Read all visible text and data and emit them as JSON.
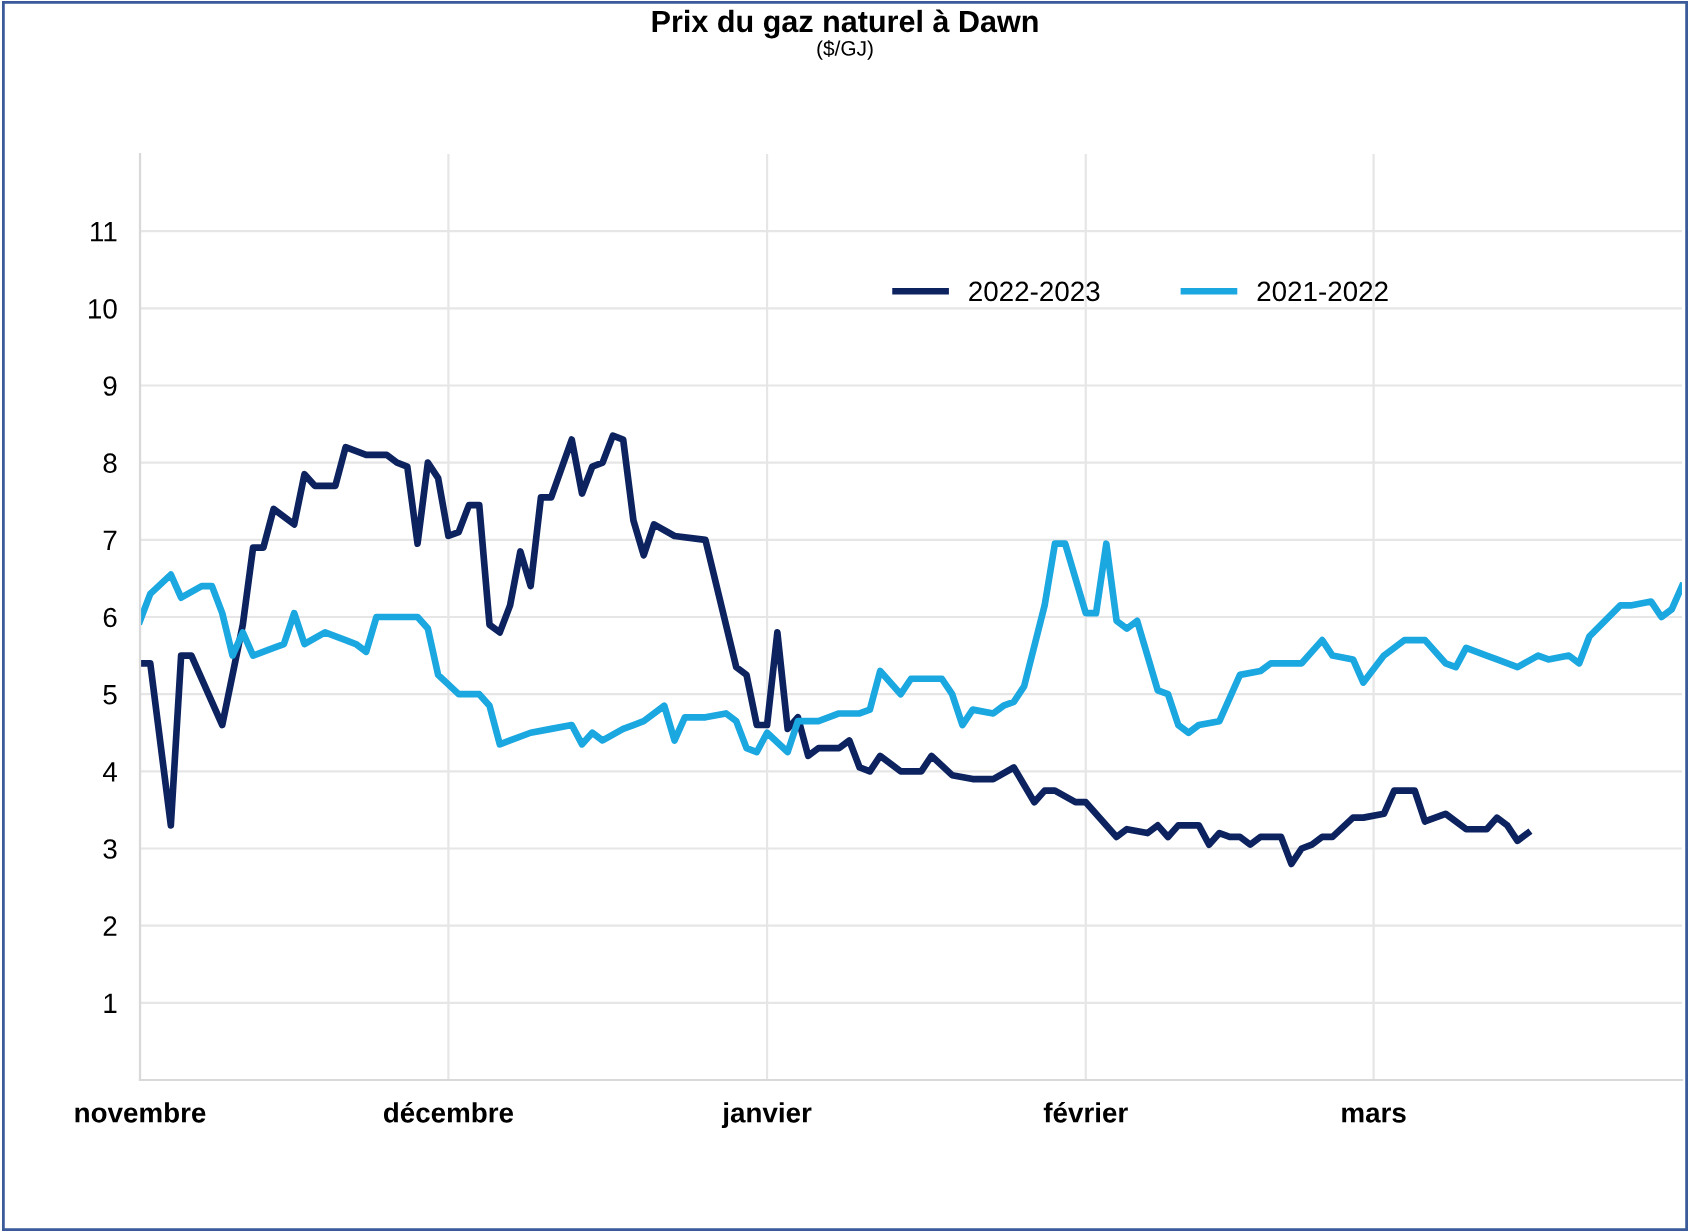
{
  "chart_data": {
    "type": "line",
    "title": "Prix du gaz naturel à Dawn",
    "subtitle": "($/GJ)",
    "xlim": [
      "2022-11-01",
      "2023-03-31"
    ],
    "xticks": [
      {
        "value": "2022-11-01",
        "label": "novembre"
      },
      {
        "value": "2022-12-01",
        "label": "décembre"
      },
      {
        "value": "2023-01-01",
        "label": "janvier"
      },
      {
        "value": "2023-02-01",
        "label": "février"
      },
      {
        "value": "2023-03-01",
        "label": "mars"
      }
    ],
    "ylim": [
      0,
      12
    ],
    "yticks": [
      1,
      2,
      3,
      4,
      5,
      6,
      7,
      8,
      9,
      10,
      11
    ],
    "grid": true,
    "legend": "top",
    "line_style": "solid",
    "marker": "none",
    "series": [
      {
        "name": "2022-2023",
        "color": "#0d2360",
        "x": [
          "2022-11-01",
          "2022-11-02",
          "2022-11-04",
          "2022-11-05",
          "2022-11-06",
          "2022-11-09",
          "2022-11-11",
          "2022-11-12",
          "2022-11-13",
          "2022-11-14",
          "2022-11-16",
          "2022-11-17",
          "2022-11-18",
          "2022-11-20",
          "2022-11-21",
          "2022-11-23",
          "2022-11-25",
          "2022-11-26",
          "2022-11-27",
          "2022-11-28",
          "2022-11-29",
          "2022-11-30",
          "2022-12-01",
          "2022-12-02",
          "2022-12-03",
          "2022-12-04",
          "2022-12-05",
          "2022-12-06",
          "2022-12-07",
          "2022-12-08",
          "2022-12-09",
          "2022-12-10",
          "2022-12-11",
          "2022-12-13",
          "2022-12-14",
          "2022-12-15",
          "2022-12-16",
          "2022-12-17",
          "2022-12-18",
          "2022-12-19",
          "2022-12-20",
          "2022-12-21",
          "2022-12-23",
          "2022-12-26",
          "2022-12-29",
          "2022-12-30",
          "2022-12-31",
          "2023-01-01",
          "2023-01-02",
          "2023-01-03",
          "2023-01-04",
          "2023-01-05",
          "2023-01-06",
          "2023-01-08",
          "2023-01-09",
          "2023-01-10",
          "2023-01-11",
          "2023-01-12",
          "2023-01-14",
          "2023-01-16",
          "2023-01-17",
          "2023-01-19",
          "2023-01-21",
          "2023-01-23",
          "2023-01-25",
          "2023-01-27",
          "2023-01-28",
          "2023-01-29",
          "2023-01-31",
          "2023-02-01",
          "2023-02-04",
          "2023-02-05",
          "2023-02-07",
          "2023-02-08",
          "2023-02-09",
          "2023-02-10",
          "2023-02-12",
          "2023-02-13",
          "2023-02-14",
          "2023-02-15",
          "2023-02-16",
          "2023-02-17",
          "2023-02-18",
          "2023-02-20",
          "2023-02-21",
          "2023-02-22",
          "2023-02-23",
          "2023-02-24",
          "2023-02-25",
          "2023-02-27",
          "2023-02-28",
          "2023-03-02",
          "2023-03-03",
          "2023-03-05",
          "2023-03-06",
          "2023-03-08",
          "2023-03-10",
          "2023-03-12",
          "2023-03-13",
          "2023-03-14",
          "2023-03-15",
          "2023-03-16"
        ],
        "values": [
          5.4,
          5.4,
          3.3,
          5.5,
          5.5,
          4.6,
          5.9,
          6.9,
          6.9,
          7.4,
          7.2,
          7.85,
          7.7,
          7.7,
          8.2,
          8.1,
          8.1,
          8.0,
          7.95,
          6.95,
          8.0,
          7.8,
          7.05,
          7.1,
          7.45,
          7.45,
          5.9,
          5.8,
          6.15,
          6.85,
          6.4,
          7.55,
          7.55,
          8.3,
          7.6,
          7.95,
          8.0,
          8.35,
          8.3,
          7.25,
          6.8,
          7.2,
          7.05,
          7.0,
          5.35,
          5.25,
          4.6,
          4.6,
          5.8,
          4.55,
          4.7,
          4.2,
          4.3,
          4.3,
          4.4,
          4.05,
          4.0,
          4.2,
          4.0,
          4.0,
          4.2,
          3.95,
          3.9,
          3.9,
          4.05,
          3.6,
          3.75,
          3.75,
          3.6,
          3.6,
          3.15,
          3.25,
          3.2,
          3.3,
          3.15,
          3.3,
          3.3,
          3.05,
          3.2,
          3.15,
          3.15,
          3.05,
          3.15,
          3.15,
          2.8,
          3.0,
          3.05,
          3.15,
          3.15,
          3.4,
          3.4,
          3.45,
          3.75,
          3.75,
          3.35,
          3.45,
          3.25,
          3.25,
          3.4,
          3.3,
          3.1,
          3.2
        ]
      },
      {
        "name": "2021-2022",
        "color": "#1ba7e0",
        "x": [
          "2022-11-01",
          "2022-11-02",
          "2022-11-04",
          "2022-11-05",
          "2022-11-07",
          "2022-11-08",
          "2022-11-09",
          "2022-11-10",
          "2022-11-11",
          "2022-11-12",
          "2022-11-14",
          "2022-11-15",
          "2022-11-16",
          "2022-11-17",
          "2022-11-19",
          "2022-11-21",
          "2022-11-22",
          "2022-11-23",
          "2022-11-24",
          "2022-11-28",
          "2022-11-29",
          "2022-11-30",
          "2022-12-02",
          "2022-12-04",
          "2022-12-05",
          "2022-12-06",
          "2022-12-07",
          "2022-12-09",
          "2022-12-11",
          "2022-12-13",
          "2022-12-14",
          "2022-12-15",
          "2022-12-16",
          "2022-12-18",
          "2022-12-19",
          "2022-12-20",
          "2022-12-22",
          "2022-12-23",
          "2022-12-24",
          "2022-12-26",
          "2022-12-28",
          "2022-12-29",
          "2022-12-30",
          "2022-12-31",
          "2023-01-01",
          "2023-01-03",
          "2023-01-04",
          "2023-01-06",
          "2023-01-08",
          "2023-01-10",
          "2023-01-11",
          "2023-01-12",
          "2023-01-14",
          "2023-01-15",
          "2023-01-18",
          "2023-01-19",
          "2023-01-20",
          "2023-01-21",
          "2023-01-23",
          "2023-01-24",
          "2023-01-25",
          "2023-01-26",
          "2023-01-28",
          "2023-01-29",
          "2023-01-30",
          "2023-02-01",
          "2023-02-02",
          "2023-02-03",
          "2023-02-04",
          "2023-02-05",
          "2023-02-06",
          "2023-02-08",
          "2023-02-09",
          "2023-02-10",
          "2023-02-11",
          "2023-02-12",
          "2023-02-14",
          "2023-02-16",
          "2023-02-18",
          "2023-02-19",
          "2023-02-21",
          "2023-02-22",
          "2023-02-24",
          "2023-02-25",
          "2023-02-27",
          "2023-02-28",
          "2023-03-02",
          "2023-03-04",
          "2023-03-06",
          "2023-03-08",
          "2023-03-09",
          "2023-03-10",
          "2023-03-12",
          "2023-03-13",
          "2023-03-15",
          "2023-03-17",
          "2023-03-18",
          "2023-03-20",
          "2023-03-21",
          "2023-03-22",
          "2023-03-25",
          "2023-03-26",
          "2023-03-28",
          "2023-03-29",
          "2023-03-30",
          "2023-03-31"
        ],
        "values": [
          5.95,
          6.3,
          6.55,
          6.25,
          6.4,
          6.4,
          6.05,
          5.5,
          5.8,
          5.5,
          5.6,
          5.65,
          6.05,
          5.65,
          5.8,
          5.7,
          5.65,
          5.55,
          6.0,
          6.0,
          5.85,
          5.25,
          5.0,
          5.0,
          4.85,
          4.35,
          4.4,
          4.5,
          4.55,
          4.6,
          4.35,
          4.5,
          4.4,
          4.55,
          4.6,
          4.65,
          4.85,
          4.4,
          4.7,
          4.7,
          4.75,
          4.65,
          4.3,
          4.25,
          4.5,
          4.25,
          4.65,
          4.65,
          4.75,
          4.75,
          4.8,
          5.3,
          5.0,
          5.2,
          5.2,
          5.0,
          4.6,
          4.8,
          4.75,
          4.85,
          4.9,
          5.1,
          6.15,
          6.95,
          6.95,
          6.05,
          6.05,
          6.95,
          5.95,
          5.85,
          5.95,
          5.05,
          5.0,
          4.6,
          4.5,
          4.6,
          4.65,
          5.25,
          5.3,
          5.4,
          5.4,
          5.4,
          5.7,
          5.5,
          5.45,
          5.15,
          5.5,
          5.7,
          5.7,
          5.4,
          5.35,
          5.6,
          5.5,
          5.45,
          5.35,
          5.5,
          5.45,
          5.5,
          5.4,
          5.75,
          6.15,
          6.15,
          6.2,
          6.0,
          6.1,
          6.4
        ]
      }
    ]
  }
}
